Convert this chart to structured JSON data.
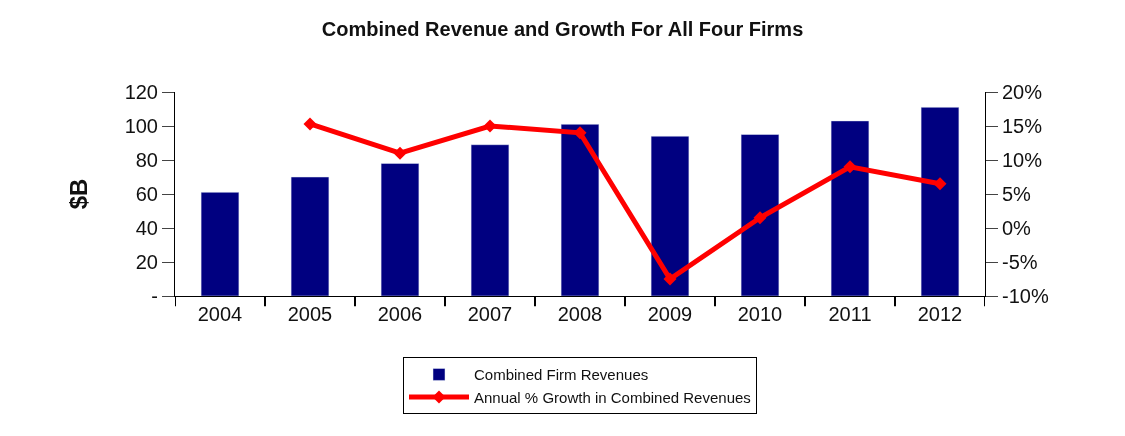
{
  "chart_data": {
    "type": "bar",
    "title": "Combined Revenue and Growth For All Four Firms",
    "ylabel": "$B",
    "categories": [
      "2004",
      "2005",
      "2006",
      "2007",
      "2008",
      "2009",
      "2010",
      "2011",
      "2012"
    ],
    "series": [
      {
        "name": "Combined Firm Revenues",
        "color": "#000080",
        "values": [
          61,
          70,
          78,
          89,
          101,
          94,
          95,
          103,
          111
        ]
      },
      {
        "name": "Annual % Growth in Combined Revenues",
        "color": "#ff0000",
        "type": "line",
        "axis": "y2",
        "marker": "diamond",
        "values": [
          null,
          15.3,
          11,
          15,
          14,
          -7.5,
          1.5,
          9,
          6.5
        ]
      }
    ],
    "ylim": [
      0,
      120
    ],
    "yticks": [
      {
        "value": 0,
        "label": "-"
      },
      20,
      40,
      60,
      80,
      100,
      120
    ],
    "y2lim": [
      -10,
      20
    ],
    "y2ticks": [
      {
        "value": -10,
        "label": "-10%"
      },
      {
        "value": -5,
        "label": "-5%"
      },
      {
        "value": 0,
        "label": "0%"
      },
      {
        "value": 5,
        "label": "5%"
      },
      {
        "value": 10,
        "label": "10%"
      },
      {
        "value": 15,
        "label": "15%"
      },
      {
        "value": 20,
        "label": "20%"
      }
    ],
    "legend": "bottom"
  }
}
